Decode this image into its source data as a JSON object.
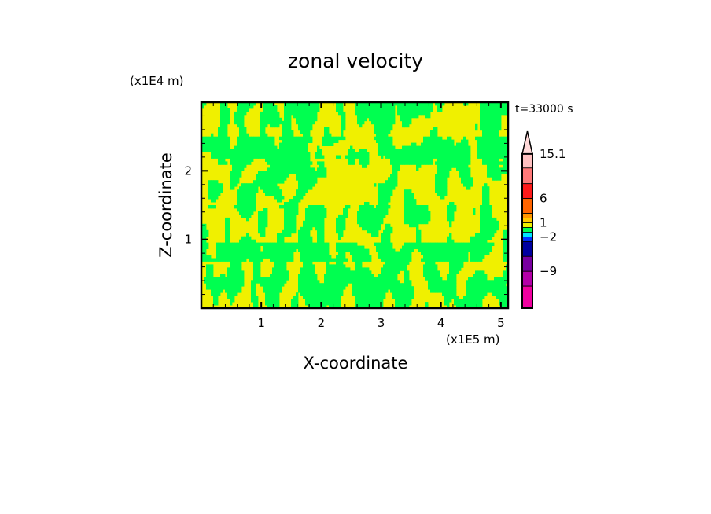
{
  "chart_data": {
    "type": "heatmap",
    "title": "zonal velocity",
    "xlabel": "X-coordinate",
    "ylabel": "Z-coordinate",
    "x_unit": "(x1E5 m)",
    "y_unit": "(x1E4 m)",
    "time_label": "t=33000 s",
    "xlim": [
      0,
      5.12
    ],
    "ylim": [
      0,
      3.0
    ],
    "xticks": [
      "1",
      "2",
      "3",
      "4",
      "5"
    ],
    "xtick_values": [
      1,
      2,
      3,
      4,
      5
    ],
    "yticks": [
      "1",
      "2"
    ],
    "ytick_values": [
      1,
      2
    ],
    "field_description": "Field mostly in the two levels just around 0 (yellow and green), with vertically elongated streaks",
    "colorbar": {
      "labels": [
        "15.1",
        "6",
        "1",
        "−2",
        "−9"
      ],
      "label_levels": [
        15.1,
        6,
        1,
        -2,
        -9
      ],
      "colors_top_to_bottom": [
        "#ffd8d8",
        "#ffc0c0",
        "#ff7878",
        "#ff1a1a",
        "#ff6400",
        "#ff9600",
        "#ffc800",
        "#f0f000",
        "#00ff50",
        "#00e6ff",
        "#0032ff",
        "#0000a0",
        "#7800a0",
        "#b400a8",
        "#f000a0"
      ],
      "segment_weights": [
        29,
        18,
        20,
        19,
        19,
        6,
        6,
        6,
        6,
        6,
        6,
        19,
        19,
        19,
        28
      ]
    },
    "dominant_colors": {
      "positive_small": "#f0f000",
      "negative_small": "#00ff50"
    }
  }
}
